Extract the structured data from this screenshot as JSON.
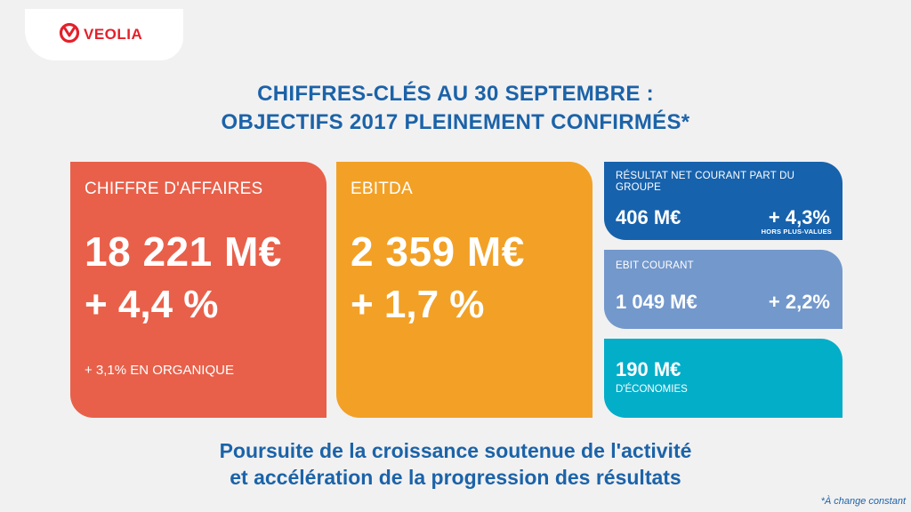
{
  "brand": {
    "name": "VEOLIA",
    "color": "#e4202a",
    "icon": "veolia-logo-icon"
  },
  "headline": {
    "line1": "CHIFFRES-CLÉS AU 30 SEPTEMBRE :",
    "line2": "OBJECTIFS 2017 PLEINEMENT CONFIRMÉS*"
  },
  "cards": {
    "chiffre_affaires": {
      "label": "CHIFFRE D'AFFAIRES",
      "value": "18 221 M€",
      "change": "+ 4,4 %",
      "note": "+ 3,1% EN ORGANIQUE",
      "color": "#e8604a"
    },
    "ebitda": {
      "label": "EBITDA",
      "value": "2 359 M€",
      "change": "+ 1,7 %",
      "color": "#f2a126"
    },
    "resultat_net": {
      "label": "RÉSULTAT NET COURANT PART DU GROUPE",
      "value": "406 M€",
      "change": "+ 4,3%",
      "sub": "HORS PLUS-VALUES",
      "color": "#1762ad"
    },
    "ebit": {
      "label": "EBIT COURANT",
      "value": "1 049 M€",
      "change": "+ 2,2%",
      "color": "#7398cc"
    },
    "economies": {
      "value": "190 M€",
      "note": "D'ÉCONOMIES",
      "color": "#03aec9"
    }
  },
  "tagline": {
    "line1": "Poursuite de la croissance soutenue de l'activité",
    "line2": "et accélération de la progression des résultats"
  },
  "footnote": "*À change constant"
}
